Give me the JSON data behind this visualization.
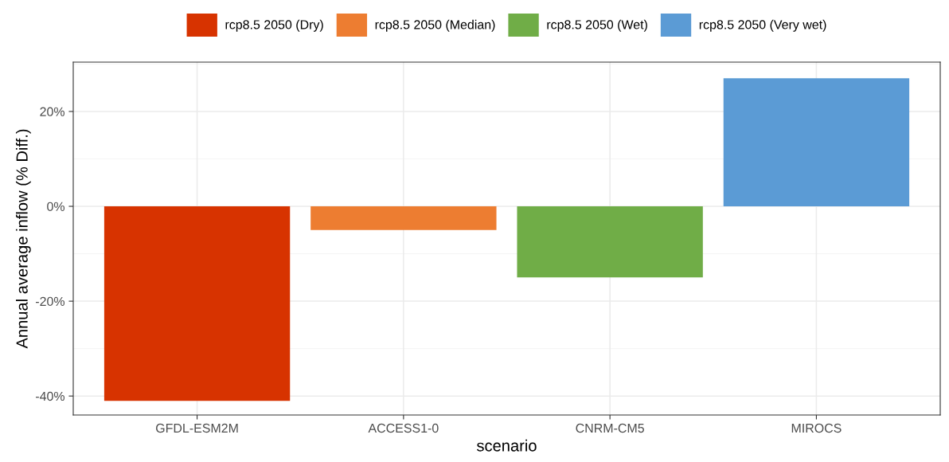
{
  "chart_data": {
    "type": "bar",
    "xlabel": "scenario",
    "ylabel": "Annual average inflow (% Diff.)",
    "categories": [
      "GFDL-ESM2M",
      "ACCESS1-0",
      "CNRM-CM5",
      "MIROCS"
    ],
    "series": [
      {
        "name": "rcp8.5 2050 (Dry)",
        "color": "#d73300",
        "values": [
          -41,
          null,
          null,
          null
        ]
      },
      {
        "name": "rcp8.5 2050 (Median)",
        "color": "#ed7d31",
        "values": [
          null,
          -5,
          null,
          null
        ]
      },
      {
        "name": "rcp8.5 2050 (Wet)",
        "color": "#70ad47",
        "values": [
          null,
          null,
          -15,
          null
        ]
      },
      {
        "name": "rcp8.5 2050 (Very wet)",
        "color": "#5b9bd5",
        "values": [
          null,
          null,
          null,
          27
        ]
      }
    ],
    "ylim": [
      -44,
      30.4
    ],
    "yticks": [
      {
        "value": -40,
        "label": "-40%"
      },
      {
        "value": -20,
        "label": "-20%"
      },
      {
        "value": 0,
        "label": "0%"
      },
      {
        "value": 20,
        "label": "20%"
      }
    ],
    "grid": true,
    "legend": "top"
  }
}
